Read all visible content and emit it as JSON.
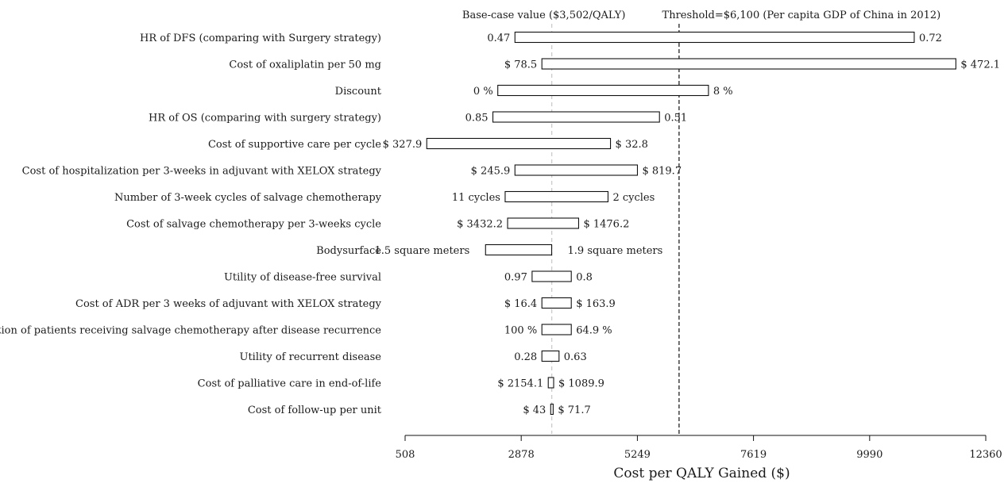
{
  "chart_data": {
    "type": "tornado",
    "xlabel": "Cost per QALY Gained ($)",
    "xlim": [
      508,
      12360
    ],
    "xticks": [
      508,
      2878,
      5249,
      7619,
      9990,
      12360
    ],
    "base_case": {
      "value": 3502,
      "label": "Base-case value ($3,502/QALY)"
    },
    "threshold": {
      "value": 6100,
      "label": "Threshold=$6,100 (Per capita GDP of China in 2012)"
    },
    "grid": false,
    "legend": "none",
    "parameters": [
      {
        "name": "HR of DFS (comparing with  Surgery strategy)",
        "low": 2750,
        "high": 10900,
        "low_label": "0.47",
        "high_label": "0.72",
        "label_pos": "ends"
      },
      {
        "name": "Cost of oxaliplatin per 50 mg",
        "low": 3300,
        "high": 11750,
        "low_label": "$ 78.5",
        "high_label": "$ 472.1",
        "label_pos": "ends"
      },
      {
        "name": "Discount",
        "low": 2400,
        "high": 6700,
        "low_label": "0 %",
        "high_label": "8 %",
        "label_pos": "ends"
      },
      {
        "name": "HR of OS (comparing with surgery strategy)",
        "low": 2300,
        "high": 5700,
        "low_label": "0.85",
        "high_label": "0.51",
        "label_pos": "ends"
      },
      {
        "name": "Cost of supportive care per cycle",
        "low": 950,
        "high": 4700,
        "low_label": "$ 327.9",
        "high_label": "$ 32.8",
        "label_pos": "ends"
      },
      {
        "name": "Cost of hospitalization per 3-weeks in adjuvant with XELOX strategy",
        "low": 2750,
        "high": 5250,
        "low_label": "$ 245.9",
        "high_label": "$ 819.7",
        "label_pos": "ends"
      },
      {
        "name": "Number of 3-week cycles of salvage chemotherapy ",
        "low": 2550,
        "high": 4650,
        "low_label": "11 cycles",
        "high_label": "2 cycles",
        "label_pos": "ends"
      },
      {
        "name": "Cost of salvage chemotherapy per 3-weeks cycle",
        "low": 2600,
        "high": 4050,
        "low_label": "$ 3432.2",
        "high_label": "$ 1476.2",
        "label_pos": "ends"
      },
      {
        "name": "Bodysurface",
        "low": 2150,
        "high": 3500,
        "low_label": "1.5 square meters",
        "high_label": "1.9 square meters",
        "label_pos": "outer"
      },
      {
        "name": "Utility of disease-free survival",
        "low": 3100,
        "high": 3900,
        "low_label": "0.97",
        "high_label": "0.8",
        "label_pos": "ends"
      },
      {
        "name": "Cost of ADR per 3 weeks of adjuvant with XELOX strategy",
        "low": 3300,
        "high": 3900,
        "low_label": "$ 16.4",
        "high_label": "$ 163.9",
        "label_pos": "ends"
      },
      {
        "name": "Proportion of patients receiving salvage chemotherapy after disease recurrence",
        "low": 3300,
        "high": 3900,
        "low_label": "100 %",
        "high_label": "64.9 %",
        "label_pos": "ends"
      },
      {
        "name": "Utility of recurrent disease",
        "low": 3300,
        "high": 3650,
        "low_label": "0.28",
        "high_label": "0.63",
        "label_pos": "ends"
      },
      {
        "name": "Cost of palliative care in end-of-life",
        "low": 3430,
        "high": 3540,
        "low_label": "$ 2154.1",
        "high_label": "$ 1089.9",
        "label_pos": "ends"
      },
      {
        "name": "Cost of follow-up per unit",
        "low": 3480,
        "high": 3530,
        "low_label": "$ 43",
        "high_label": "$ 71.7",
        "label_pos": "ends"
      }
    ]
  }
}
